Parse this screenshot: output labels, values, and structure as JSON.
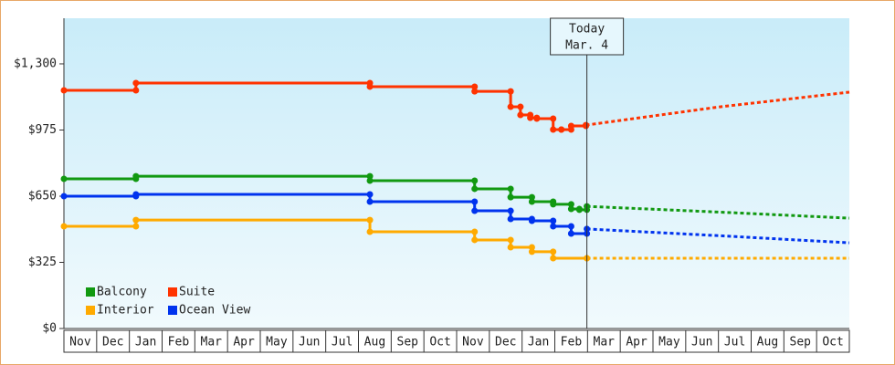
{
  "chart_data": {
    "type": "step-line",
    "months": [
      "Nov",
      "Dec",
      "Jan",
      "Feb",
      "Mar",
      "Apr",
      "May",
      "Jun",
      "Jul",
      "Aug",
      "Sep",
      "Oct",
      "Nov",
      "Dec",
      "Jan",
      "Feb",
      "Mar",
      "Apr",
      "May",
      "Jun",
      "Jul",
      "Aug",
      "Sep",
      "Oct"
    ],
    "xlim": [
      0,
      24
    ],
    "ylim": [
      0,
      1524
    ],
    "yticks": [
      {
        "value": 0,
        "label": "$0"
      },
      {
        "value": 325,
        "label": "$325"
      },
      {
        "value": 650,
        "label": "$650"
      },
      {
        "value": 975,
        "label": "$975"
      },
      {
        "value": 1300,
        "label": "$1,300"
      }
    ],
    "annotation": {
      "x": 15.98,
      "label": "Today",
      "sublabel": "Mar. 4"
    },
    "legend": "lower-left",
    "series": [
      {
        "name": "Balcony",
        "color": "#119911",
        "x": [
          0,
          2.2,
          9.35,
          12.55,
          13.65,
          14.3,
          14.95,
          15.5,
          15.75,
          15.98
        ],
        "values": [
          735,
          748,
          726,
          686,
          645,
          623,
          610,
          587,
          583,
          600
        ],
        "forecast_x": [
          15.98,
          20,
          24
        ],
        "forecast_values": [
          600,
          572,
          542
        ]
      },
      {
        "name": "Suite",
        "color": "#ff3300",
        "x": [
          0,
          2.2,
          9.35,
          12.55,
          13.65,
          13.95,
          14.25,
          14.45,
          14.95,
          15.2,
          15.5,
          15.95
        ],
        "values": [
          1170,
          1206,
          1188,
          1165,
          1089,
          1049,
          1035,
          1031,
          977,
          977,
          995,
          999
        ],
        "forecast_x": [
          15.95,
          20,
          24
        ],
        "forecast_values": [
          999,
          1088,
          1161
        ]
      },
      {
        "name": "Interior",
        "color": "#ffaa00",
        "x": [
          0,
          2.2,
          9.35,
          12.55,
          13.65,
          14.3,
          14.95,
          15.98
        ],
        "values": [
          502,
          533,
          475,
          435,
          399,
          377,
          345,
          345
        ],
        "forecast_x": [
          15.98,
          24
        ],
        "forecast_values": [
          345,
          345
        ]
      },
      {
        "name": "Ocean View",
        "color": "#0033ee",
        "x": [
          0,
          2.2,
          9.35,
          12.55,
          13.65,
          14.3,
          14.95,
          15.5,
          15.98
        ],
        "values": [
          650,
          659,
          623,
          578,
          538,
          529,
          502,
          466,
          489
        ],
        "forecast_x": [
          15.98,
          20,
          24
        ],
        "forecast_values": [
          489,
          456,
          421
        ]
      }
    ]
  }
}
